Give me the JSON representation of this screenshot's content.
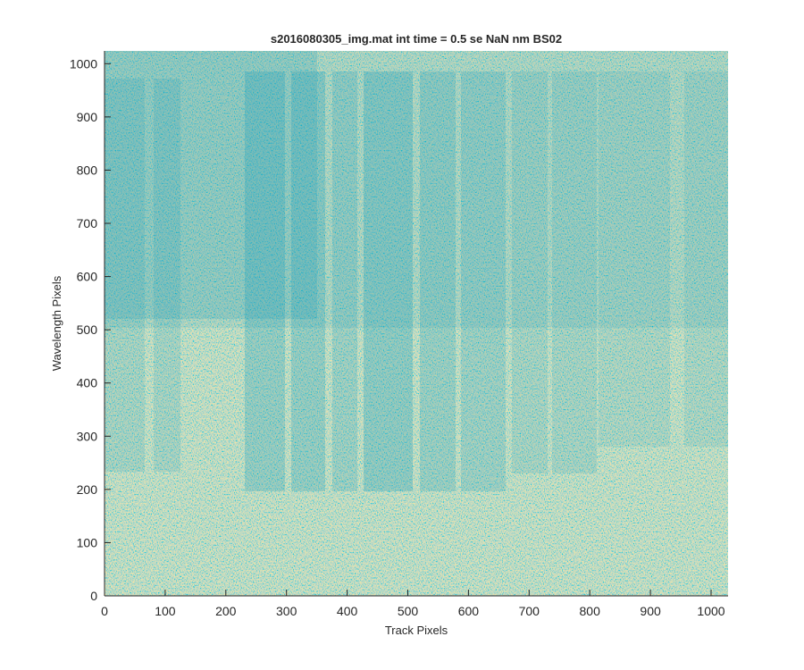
{
  "chart_data": {
    "type": "image",
    "title": "s2016080305_img.mat int time = 0.5 se  NaN nm BS02",
    "x_label": "Track Pixels",
    "y_label": "Wavelength Pixels",
    "xlim": [
      0,
      1028
    ],
    "ylim": [
      0,
      1024
    ],
    "xticks": [
      0,
      100,
      200,
      300,
      400,
      500,
      600,
      700,
      800,
      900,
      1000
    ],
    "yticks": [
      0,
      100,
      200,
      300,
      400,
      500,
      600,
      700,
      800,
      900,
      1000
    ]
  }
}
